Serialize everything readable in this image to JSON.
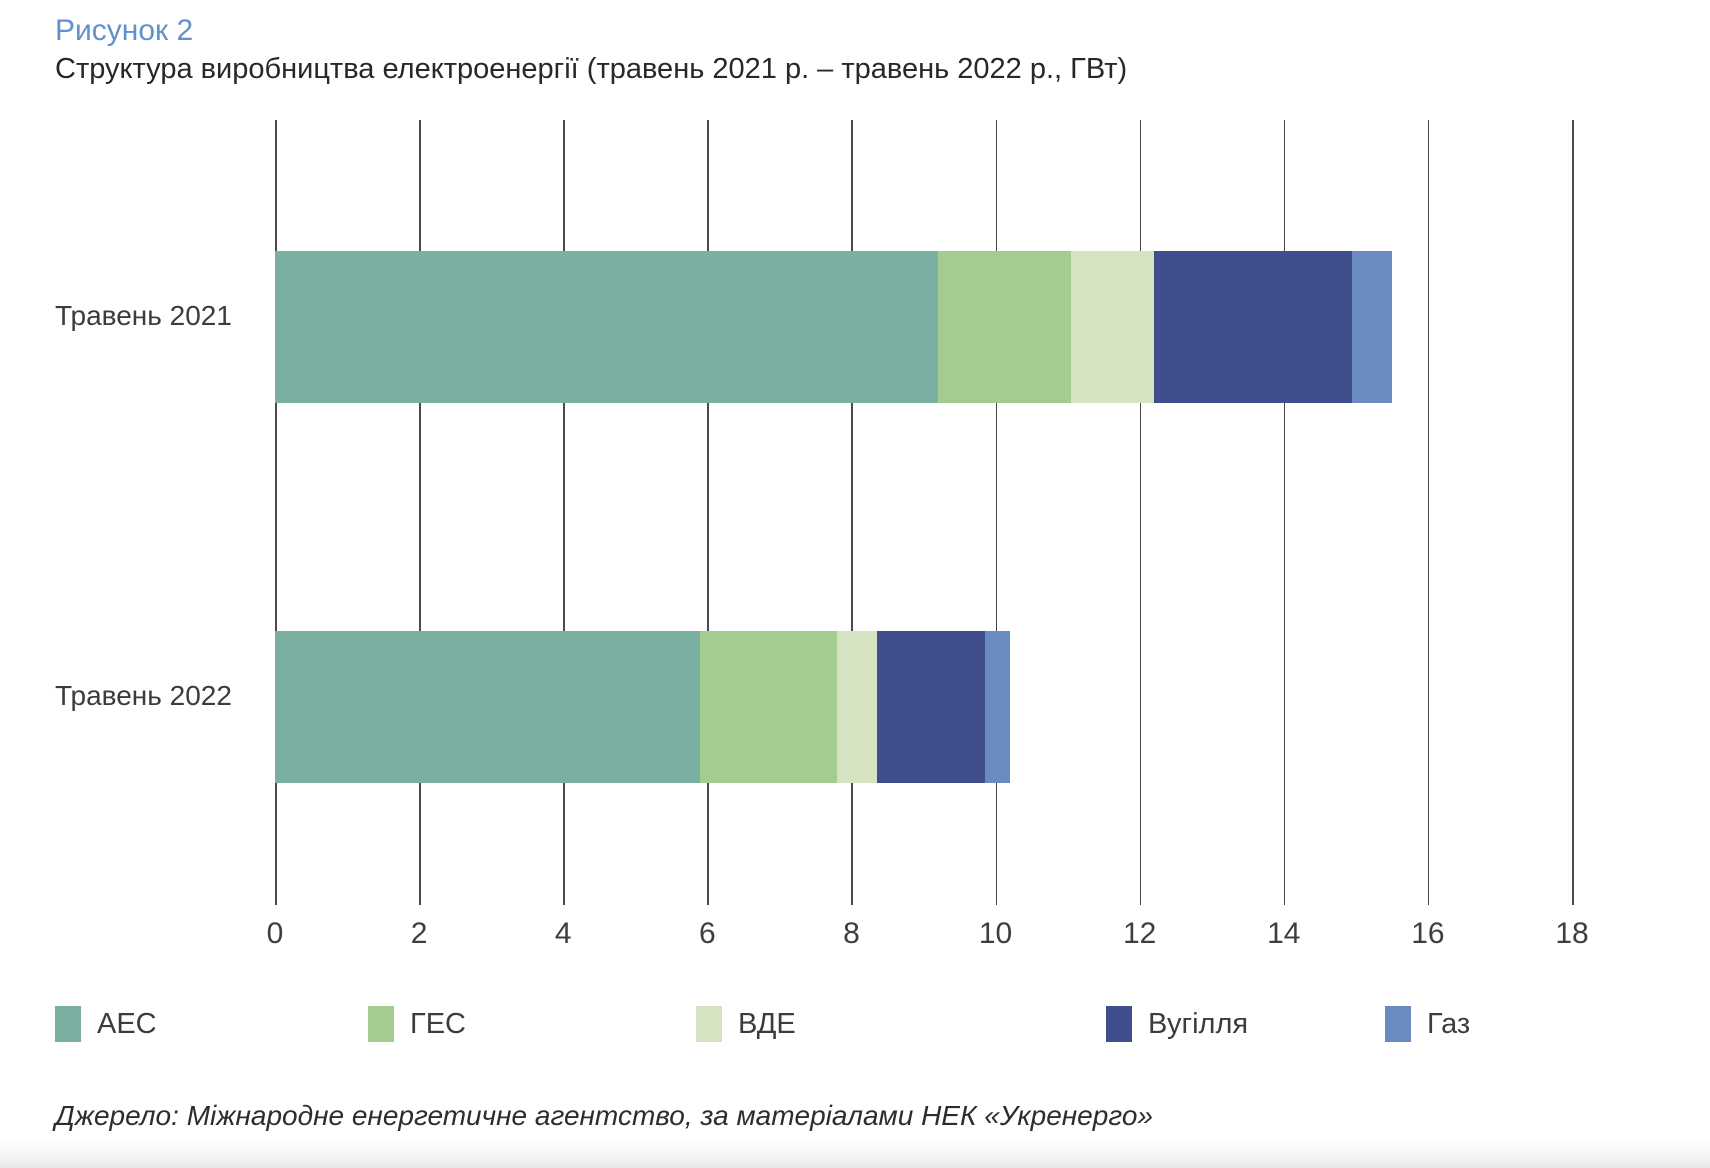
{
  "figure": {
    "label": "Рисунок 2",
    "title": "Структура виробництва електроенергії (травень 2021 р. – травень 2022 р., ГВт)",
    "source": "Джерело: Міжнародне енергетичне агентство, за матеріалами НЕК «Укренерго»"
  },
  "colors": {
    "figure_label_accent": "#6191cd",
    "text": "#3a3d40",
    "gridline": "#4a4a4a"
  },
  "chart_data": {
    "type": "bar",
    "orientation": "horizontal",
    "stacked": true,
    "title": "Структура виробництва електроенергії (травень 2021 р. – травень 2022 р., ГВт)",
    "unit": "ГВт",
    "categories": [
      "Травень 2021",
      "Травень 2022"
    ],
    "series": [
      {
        "name": "АЕС",
        "color": "#7bafa2",
        "values": [
          9.2,
          5.9
        ]
      },
      {
        "name": "ГЕС",
        "color": "#a4cb90",
        "values": [
          1.85,
          1.9
        ]
      },
      {
        "name": "ВДЕ",
        "color": "#d6e3c3",
        "values": [
          1.15,
          0.55
        ]
      },
      {
        "name": "Вугілля",
        "color": "#404e8b",
        "values": [
          2.75,
          1.5
        ]
      },
      {
        "name": "Газ",
        "color": "#698bc0",
        "values": [
          0.55,
          0.35
        ]
      }
    ],
    "totals": [
      15.5,
      10.2
    ],
    "xlim": [
      0,
      18
    ],
    "xticks": [
      0,
      2,
      4,
      6,
      8,
      10,
      12,
      14,
      16,
      18
    ],
    "grid": true,
    "legend_position": "bottom"
  }
}
